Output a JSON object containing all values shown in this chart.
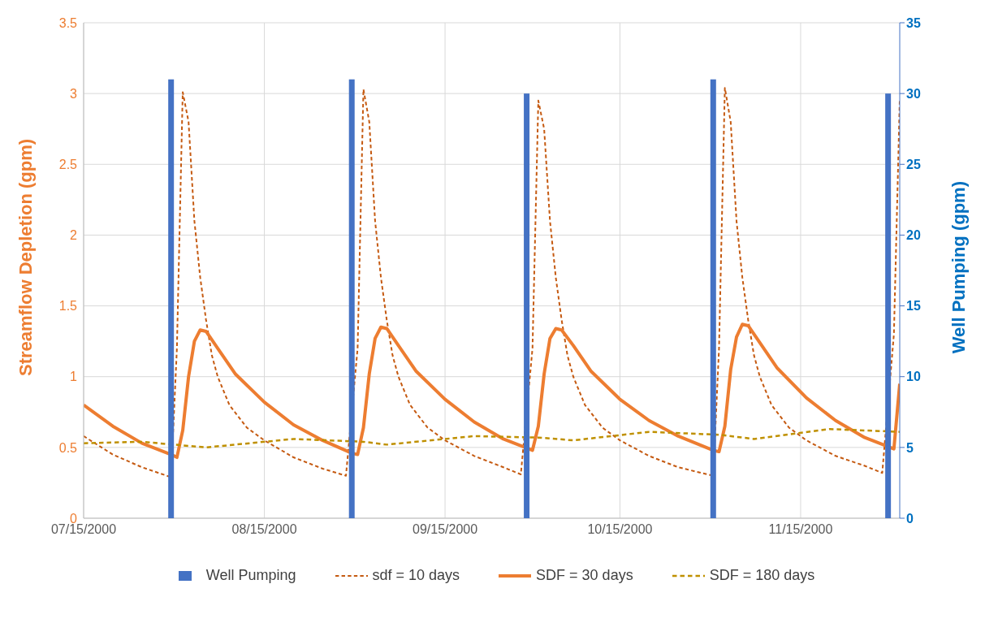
{
  "chart_data": {
    "type": "line",
    "ylabel": "Streamflow Depletion (gpm)",
    "y2label": "Well Pumping (gpm)",
    "xlim": [
      "2000-07-15",
      "2000-12-02"
    ],
    "xticks": [
      {
        "value": "2000-07-15",
        "label": "07/15/2000"
      },
      {
        "value": "2000-08-15",
        "label": "08/15/2000"
      },
      {
        "value": "2000-09-15",
        "label": "09/15/2000"
      },
      {
        "value": "2000-10-15",
        "label": "10/15/2000"
      },
      {
        "value": "2000-11-15",
        "label": "11/15/2000"
      }
    ],
    "ylim": [
      0,
      3.5
    ],
    "yticks": [
      0,
      0.5,
      1,
      1.5,
      2,
      2.5,
      3,
      3.5
    ],
    "y2lim": [
      0,
      35
    ],
    "y2ticks": [
      0,
      5,
      10,
      15,
      20,
      25,
      30,
      35
    ],
    "grid": true,
    "legend": "bottom",
    "series": [
      {
        "name": "Well Pumping",
        "type": "bar",
        "axis": "y2",
        "color": "#4472c4",
        "x": [
          "2000-07-30",
          "2000-08-30",
          "2000-09-29",
          "2000-10-31",
          "2000-11-30"
        ],
        "values": [
          31,
          31,
          30,
          31,
          30
        ]
      },
      {
        "name": "sdf = 10 days",
        "color": "#c55a11",
        "line_style": "dashed",
        "x": [
          "2000-07-15",
          "2000-07-20",
          "2000-07-25",
          "2000-07-30",
          "2000-07-31",
          "2000-08-01",
          "2000-08-02",
          "2000-08-03",
          "2000-08-04",
          "2000-08-05",
          "2000-08-06",
          "2000-08-07",
          "2000-08-09",
          "2000-08-12",
          "2000-08-15",
          "2000-08-20",
          "2000-08-25",
          "2000-08-29",
          "2000-08-31",
          "2000-09-01",
          "2000-09-02",
          "2000-09-03",
          "2000-09-04",
          "2000-09-05",
          "2000-09-06",
          "2000-09-07",
          "2000-09-09",
          "2000-09-12",
          "2000-09-15",
          "2000-09-20",
          "2000-09-25",
          "2000-09-28",
          "2000-09-30",
          "2000-10-01",
          "2000-10-02",
          "2000-10-03",
          "2000-10-04",
          "2000-10-05",
          "2000-10-06",
          "2000-10-07",
          "2000-10-09",
          "2000-10-12",
          "2000-10-15",
          "2000-10-20",
          "2000-10-25",
          "2000-10-31",
          "2000-11-01",
          "2000-11-02",
          "2000-11-03",
          "2000-11-04",
          "2000-11-05",
          "2000-11-06",
          "2000-11-07",
          "2000-11-08",
          "2000-11-10",
          "2000-11-13",
          "2000-11-16",
          "2000-11-21",
          "2000-11-26",
          "2000-11-29",
          "2000-12-01",
          "2000-12-02"
        ],
        "values": [
          0.58,
          0.45,
          0.36,
          0.29,
          1.2,
          3.01,
          2.8,
          2.1,
          1.7,
          1.4,
          1.15,
          1.0,
          0.8,
          0.64,
          0.55,
          0.43,
          0.35,
          0.3,
          1.2,
          3.03,
          2.8,
          2.1,
          1.7,
          1.4,
          1.15,
          1.0,
          0.8,
          0.64,
          0.55,
          0.44,
          0.36,
          0.31,
          1.2,
          2.95,
          2.75,
          2.1,
          1.7,
          1.4,
          1.15,
          1.0,
          0.8,
          0.64,
          0.55,
          0.44,
          0.36,
          0.3,
          1.2,
          3.04,
          2.8,
          2.1,
          1.7,
          1.4,
          1.15,
          1.0,
          0.8,
          0.64,
          0.55,
          0.44,
          0.37,
          0.32,
          1.3,
          2.95
        ]
      },
      {
        "name": "SDF = 30 days",
        "color": "#ed7d31",
        "x": [
          "2000-07-15",
          "2000-07-20",
          "2000-07-25",
          "2000-07-30",
          "2000-07-31",
          "2000-08-01",
          "2000-08-02",
          "2000-08-03",
          "2000-08-04",
          "2000-08-05",
          "2000-08-07",
          "2000-08-10",
          "2000-08-15",
          "2000-08-20",
          "2000-08-25",
          "2000-08-30",
          "2000-08-31",
          "2000-09-01",
          "2000-09-02",
          "2000-09-03",
          "2000-09-04",
          "2000-09-05",
          "2000-09-07",
          "2000-09-10",
          "2000-09-15",
          "2000-09-20",
          "2000-09-25",
          "2000-09-30",
          "2000-10-01",
          "2000-10-02",
          "2000-10-03",
          "2000-10-04",
          "2000-10-05",
          "2000-10-07",
          "2000-10-10",
          "2000-10-15",
          "2000-10-20",
          "2000-10-25",
          "2000-10-31",
          "2000-11-01",
          "2000-11-02",
          "2000-11-03",
          "2000-11-04",
          "2000-11-05",
          "2000-11-06",
          "2000-11-08",
          "2000-11-11",
          "2000-11-16",
          "2000-11-21",
          "2000-11-26",
          "2000-12-01",
          "2000-12-02"
        ],
        "values": [
          0.8,
          0.65,
          0.53,
          0.45,
          0.43,
          0.62,
          1.0,
          1.25,
          1.33,
          1.32,
          1.2,
          1.02,
          0.82,
          0.66,
          0.55,
          0.46,
          0.45,
          0.64,
          1.02,
          1.27,
          1.35,
          1.34,
          1.22,
          1.04,
          0.84,
          0.68,
          0.56,
          0.48,
          0.65,
          1.02,
          1.27,
          1.34,
          1.33,
          1.22,
          1.04,
          0.84,
          0.69,
          0.58,
          0.48,
          0.47,
          0.65,
          1.05,
          1.28,
          1.37,
          1.36,
          1.24,
          1.06,
          0.85,
          0.69,
          0.57,
          0.49,
          0.95
        ]
      },
      {
        "name": "SDF = 180 days",
        "color": "#bf9000",
        "line_style": "dashed",
        "x": [
          "2000-07-15",
          "2000-07-25",
          "2000-08-05",
          "2000-08-20",
          "2000-09-01",
          "2000-09-05",
          "2000-09-20",
          "2000-10-01",
          "2000-10-07",
          "2000-10-20",
          "2000-11-01",
          "2000-11-07",
          "2000-11-20",
          "2000-12-02"
        ],
        "values": [
          0.53,
          0.54,
          0.5,
          0.56,
          0.54,
          0.52,
          0.58,
          0.57,
          0.55,
          0.61,
          0.59,
          0.56,
          0.63,
          0.61
        ]
      }
    ]
  }
}
